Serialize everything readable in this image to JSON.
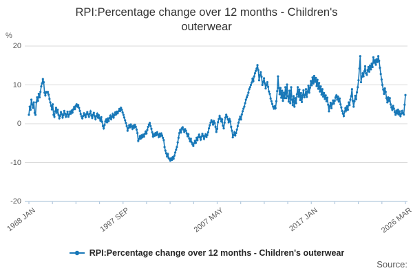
{
  "title_lines": [
    "RPI:Percentage change over 12 months - Children's",
    "outerwear"
  ],
  "y_axis": {
    "unit_label": "%",
    "ticks": [
      20,
      10,
      0,
      -10,
      -20
    ]
  },
  "x_axis": {
    "major_labels": [
      "1988 JAN",
      "1997 SEP",
      "2007 MAY",
      "2017 JAN",
      "2026 MAR"
    ],
    "major_tick_indices": [
      0,
      4,
      8,
      12,
      16
    ],
    "total_tick_count": 17
  },
  "legend": {
    "label": "RPI:Percentage change over 12 months - Children's outerwear"
  },
  "source_label": "Source:",
  "colors": {
    "line": "#1878b8",
    "grid": "#d9d9d9",
    "axis": "#b3c9de",
    "tick_text": "#595959",
    "title_text": "#333333"
  },
  "chart_data": {
    "type": "line",
    "title": "RPI:Percentage change over 12 months - Children's outerwear",
    "xlabel": "",
    "ylabel": "%",
    "ylim": [
      -20,
      20
    ],
    "x_start": "1988 JAN",
    "x_end": "2026 MAR",
    "frequency": "monthly",
    "grid": true,
    "legend_position": "bottom",
    "series": [
      {
        "name": "RPI:Percentage change over 12 months - Children's outerwear",
        "values": [
          2.3,
          4.4,
          3.6,
          6.2,
          5.0,
          4.1,
          5.5,
          2.8,
          2.3,
          5.5,
          6.8,
          5.9,
          7.7,
          6.8,
          8.2,
          9.6,
          10.4,
          11.5,
          10.7,
          8.0,
          7.3,
          8.2,
          8.0,
          8.2,
          7.5,
          6.4,
          5.5,
          4.6,
          3.7,
          5.0,
          2.3,
          1.8,
          3.2,
          4.1,
          2.8,
          3.6,
          2.3,
          1.4,
          2.0,
          3.0,
          2.5,
          1.6,
          2.2,
          3.3,
          2.6,
          1.8,
          2.4,
          3.1,
          1.8,
          2.4,
          3.1,
          2.6,
          3.4,
          2.9,
          3.7,
          4.3,
          3.8,
          4.6,
          5.0,
          4.4,
          4.8,
          4.1,
          3.3,
          2.5,
          1.9,
          1.4,
          2.0,
          2.7,
          2.2,
          1.7,
          2.5,
          3.0,
          2.4,
          1.8,
          2.6,
          3.2,
          2.1,
          1.5,
          2.3,
          2.8,
          1.9,
          1.2,
          2.0,
          2.6,
          1.6,
          2.2,
          1.4,
          0.8,
          1.7,
          0.5,
          -0.6,
          -1.2,
          -0.3,
          0.6,
          1.1,
          0.4,
          1.3,
          0.7,
          1.5,
          2.1,
          1.2,
          1.8,
          2.5,
          1.6,
          2.2,
          2.9,
          2.4,
          3.1,
          2.7,
          3.2,
          3.8,
          3.3,
          4.1,
          3.6,
          2.9,
          2.3,
          1.6,
          0.9,
          0.2,
          -0.6,
          -1.8,
          -1.1,
          -0.4,
          -0.9,
          -0.2,
          -0.7,
          -1.3,
          -0.5,
          -1.0,
          -0.3,
          -0.8,
          -1.5,
          -2.4,
          -4.4,
          -3.9,
          -3.2,
          -3.8,
          -3.0,
          -3.5,
          -2.8,
          -3.3,
          -2.6,
          -2.0,
          -2.5,
          -1.6,
          -0.8,
          -0.2,
          0.2,
          -0.6,
          -1.3,
          -2.2,
          -3.3,
          -2.7,
          -3.1,
          -2.4,
          -2.9,
          -2.2,
          -2.8,
          -3.4,
          -2.6,
          -3.2,
          -2.5,
          -3.0,
          -3.6,
          -4.2,
          -6.0,
          -6.9,
          -7.6,
          -8.4,
          -7.8,
          -8.8,
          -9.1,
          -9.5,
          -8.9,
          -9.3,
          -8.6,
          -9.0,
          -8.2,
          -7.4,
          -6.7,
          -6.0,
          -4.8,
          -3.6,
          -2.4,
          -1.6,
          -2.2,
          -1.2,
          -0.9,
          -1.5,
          -2.1,
          -1.4,
          -1.8,
          -2.5,
          -3.2,
          -2.7,
          -3.8,
          -4.5,
          -3.9,
          -4.8,
          -5.3,
          -5.7,
          -5.0,
          -4.4,
          -4.9,
          -3.6,
          -4.2,
          -3.4,
          -2.8,
          -3.5,
          -4.1,
          -3.3,
          -2.6,
          -3.1,
          -3.9,
          -3.2,
          -2.7,
          -3.4,
          -2.9,
          -2.2,
          -1.2,
          -0.4,
          0.3,
          0.9,
          0.5,
          -0.2,
          0.7,
          0.2,
          -0.8,
          -2.1,
          -1.3,
          0.4,
          1.2,
          2.0,
          1.4,
          0.6,
          1.1,
          -0.5,
          -1.2,
          0.3,
          1.6,
          2.3,
          1.8,
          1.1,
          0.4,
          1.2,
          0.6,
          -0.8,
          -1.8,
          -3.5,
          -2.9,
          -2.2,
          -3.0,
          -2.4,
          -1.5,
          -0.6,
          0.3,
          1.1,
          1.8,
          1.1,
          2.4,
          3.2,
          3.9,
          4.4,
          5.3,
          6.2,
          6.8,
          7.3,
          8.0,
          8.9,
          9.4,
          10.0,
          10.6,
          11.6,
          11.0,
          12.2,
          13.0,
          13.6,
          14.2,
          15.1,
          13.8,
          11.2,
          12.5,
          13.3,
          12.1,
          10.0,
          10.8,
          11.7,
          10.4,
          9.1,
          10.0,
          10.7,
          9.5,
          8.3,
          7.7,
          6.5,
          5.8,
          5.1,
          4.4,
          3.9,
          4.5,
          4.0,
          5.8,
          8.4,
          12.2,
          9.2,
          7.6,
          9.2,
          6.7,
          8.5,
          5.9,
          8.0,
          6.6,
          9.4,
          6.6,
          10.1,
          7.1,
          5.7,
          8.5,
          5.3,
          9.4,
          6.2,
          4.8,
          7.1,
          4.4,
          6.6,
          5.3,
          7.6,
          9.4,
          7.0,
          8.8,
          6.1,
          7.9,
          5.6,
          7.3,
          8.6,
          6.8,
          7.4,
          8.9,
          6.9,
          8.3,
          9.8,
          8.0,
          9.3,
          11.0,
          9.9,
          11.9,
          10.4,
          12.3,
          10.8,
          11.8,
          9.7,
          11.3,
          9.0,
          10.5,
          8.3,
          9.6,
          7.5,
          8.9,
          7.0,
          7.9,
          6.4,
          7.3,
          5.8,
          6.7,
          4.9,
          3.2,
          4.5,
          5.4,
          4.0,
          5.1,
          6.0,
          5.2,
          5.9,
          6.8,
          7.3,
          6.2,
          7.0,
          5.7,
          6.5,
          5.0,
          4.2,
          3.3,
          2.6,
          2.0,
          3.1,
          4.0,
          3.4,
          4.5,
          3.6,
          5.5,
          4.8,
          6.2,
          7.1,
          8.9,
          5.9,
          4.4,
          5.8,
          7.2,
          6.3,
          8.1,
          9.4,
          11.2,
          14.2,
          17.4,
          10.7,
          12.1,
          13.0,
          12.2,
          13.5,
          14.8,
          13.0,
          12.6,
          13.8,
          14.6,
          13.4,
          15.0,
          14.0,
          15.5,
          14.6,
          17.1,
          15.7,
          16.3,
          15.2,
          16.6,
          15.9,
          17.4,
          16.2,
          14.4,
          12.8,
          11.4,
          10.0,
          8.8,
          7.7,
          9.1,
          8.2,
          6.6,
          5.5,
          6.8,
          5.9,
          6.6,
          5.0,
          4.2,
          3.6,
          4.6,
          3.9,
          3.0,
          2.3,
          3.4,
          2.7,
          3.6,
          2.4,
          3.2,
          2.0,
          2.6,
          3.3,
          2.7,
          2.4,
          4.9,
          7.4
        ]
      }
    ]
  }
}
